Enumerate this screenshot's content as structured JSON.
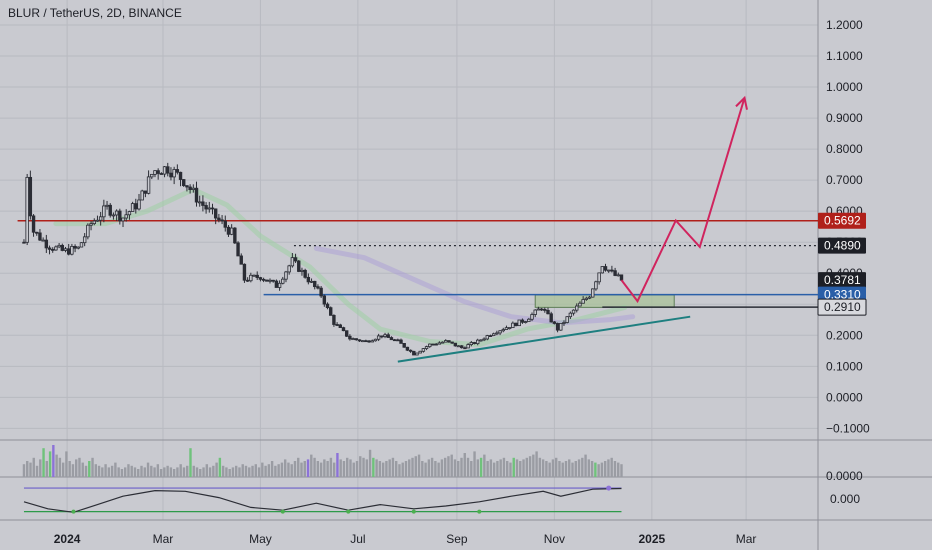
{
  "header": {
    "title": "BLUR / TetherUS, 2D, BINANCE"
  },
  "chart_data": {
    "type": "candlestick",
    "symbol": "BLUR / TetherUS",
    "interval": "2D",
    "exchange": "BINANCE",
    "y_ticks": [
      1.2,
      1.1,
      1.0,
      0.9,
      0.8,
      0.7,
      0.6,
      0.5,
      0.4,
      0.3,
      0.2,
      0.1,
      0.0,
      -0.1
    ],
    "y_tick_labels": [
      "1.2000",
      "1.1000",
      "1.0000",
      "0.9000",
      "0.8000",
      "0.7000",
      "0.6000",
      "0.5000",
      "0.4000",
      "0.3000",
      "0.2000",
      "0.1000",
      "0.0000",
      "−0.1000"
    ],
    "ylim": [
      -0.13,
      1.26
    ],
    "x_ticks": [
      "2024",
      "Mar",
      "May",
      "Jul",
      "Sep",
      "Nov",
      "2025",
      "Mar"
    ],
    "x_tick_dates": [
      "2024-01-01",
      "2024-03-01",
      "2024-05-01",
      "2024-07-01",
      "2024-09-01",
      "2024-11-01",
      "2025-01-01",
      "2025-03-01"
    ],
    "xlim": [
      "2023-11-20",
      "2025-04-15"
    ],
    "price_path": [
      [
        "2023-12-05",
        0.5
      ],
      [
        "2023-12-06",
        0.78
      ],
      [
        "2023-12-10",
        0.54
      ],
      [
        "2023-12-20",
        0.49
      ],
      [
        "2023-12-30",
        0.47
      ],
      [
        "2024-01-08",
        0.48
      ],
      [
        "2024-01-16",
        0.56
      ],
      [
        "2024-01-26",
        0.61
      ],
      [
        "2024-02-05",
        0.58
      ],
      [
        "2024-02-15",
        0.63
      ],
      [
        "2024-02-24",
        0.73
      ],
      [
        "2024-03-04",
        0.74
      ],
      [
        "2024-03-14",
        0.7
      ],
      [
        "2024-03-24",
        0.63
      ],
      [
        "2024-04-03",
        0.58
      ],
      [
        "2024-04-13",
        0.53
      ],
      [
        "2024-04-21",
        0.38
      ],
      [
        "2024-05-01",
        0.39
      ],
      [
        "2024-05-11",
        0.36
      ],
      [
        "2024-05-21",
        0.44
      ],
      [
        "2024-05-31",
        0.38
      ],
      [
        "2024-06-08",
        0.33
      ],
      [
        "2024-06-16",
        0.24
      ],
      [
        "2024-06-26",
        0.19
      ],
      [
        "2024-07-06",
        0.18
      ],
      [
        "2024-07-16",
        0.2
      ],
      [
        "2024-07-26",
        0.18
      ],
      [
        "2024-08-05",
        0.14
      ],
      [
        "2024-08-15",
        0.17
      ],
      [
        "2024-08-25",
        0.18
      ],
      [
        "2024-09-04",
        0.16
      ],
      [
        "2024-09-14",
        0.18
      ],
      [
        "2024-09-24",
        0.21
      ],
      [
        "2024-10-04",
        0.23
      ],
      [
        "2024-10-14",
        0.25
      ],
      [
        "2024-10-24",
        0.29
      ],
      [
        "2024-11-03",
        0.22
      ],
      [
        "2024-11-13",
        0.28
      ],
      [
        "2024-11-23",
        0.33
      ],
      [
        "2024-12-01",
        0.43
      ],
      [
        "2024-12-07",
        0.4
      ],
      [
        "2024-12-13",
        0.378
      ]
    ],
    "ma_green": [
      [
        "2023-12-25",
        0.56
      ],
      [
        "2024-01-25",
        0.56
      ],
      [
        "2024-02-20",
        0.6
      ],
      [
        "2024-03-20",
        0.67
      ],
      [
        "2024-04-10",
        0.62
      ],
      [
        "2024-05-01",
        0.52
      ],
      [
        "2024-06-01",
        0.42
      ],
      [
        "2024-06-25",
        0.3
      ],
      [
        "2024-07-15",
        0.22
      ],
      [
        "2024-08-15",
        0.18
      ],
      [
        "2024-09-15",
        0.17
      ],
      [
        "2024-10-15",
        0.22
      ],
      [
        "2024-11-15",
        0.25
      ],
      [
        "2024-12-15",
        0.29
      ]
    ],
    "ma_purple": [
      [
        "2024-06-05",
        0.48
      ],
      [
        "2024-07-05",
        0.45
      ],
      [
        "2024-08-05",
        0.38
      ],
      [
        "2024-09-05",
        0.31
      ],
      [
        "2024-10-05",
        0.26
      ],
      [
        "2024-11-05",
        0.24
      ],
      [
        "2024-12-05",
        0.25
      ],
      [
        "2024-12-20",
        0.26
      ]
    ],
    "levels": [
      {
        "value": 0.5692,
        "label": "0.5692",
        "color": "#b0201a",
        "style": "solid",
        "from": "2023-12-01"
      },
      {
        "value": 0.489,
        "label": "0.4890",
        "color": "#2a2d36",
        "style": "dotted",
        "from": "2024-05-22"
      },
      {
        "value": 0.378,
        "label": "0.3781",
        "color": "#1d1f26",
        "style": "none"
      },
      {
        "value": 0.331,
        "label": "0.3310",
        "color": "#2a5fa8",
        "style": "solid",
        "from": "2024-05-03"
      },
      {
        "value": 0.291,
        "label": "0.2910",
        "color": "#2a2d36",
        "style": "solid",
        "from": "2024-12-01"
      }
    ],
    "support_zone": {
      "from": "2024-10-20",
      "to": "2025-01-15",
      "low": 0.29,
      "high": 0.33,
      "color": "#a9c29a"
    },
    "trendlines": [
      {
        "from": [
          "2024-07-26",
          0.115
        ],
        "to": [
          "2025-01-25",
          0.26
        ],
        "color": "#1e7f80"
      }
    ],
    "projection": [
      [
        "2024-12-13",
        0.378
      ],
      [
        "2024-12-23",
        0.31
      ],
      [
        "2025-01-16",
        0.57
      ],
      [
        "2025-01-31",
        0.485
      ],
      [
        "2025-02-28",
        0.965
      ]
    ],
    "projection_color": "#d0245e",
    "volume": {
      "from": "2023-12-05",
      "to": "2024-12-13",
      "ylim": [
        0,
        1
      ],
      "bars": [
        0.4,
        0.5,
        0.45,
        0.6,
        0.35,
        0.55,
        0.9,
        0.5,
        0.8,
        1.0,
        0.7,
        0.6,
        0.45,
        0.8,
        0.5,
        0.4,
        0.55,
        0.6,
        0.45,
        0.35,
        0.5,
        0.6,
        0.4,
        0.35,
        0.3,
        0.4,
        0.3,
        0.35,
        0.45,
        0.3,
        0.25,
        0.3,
        0.4,
        0.35,
        0.3,
        0.25,
        0.35,
        0.3,
        0.45,
        0.35,
        0.3,
        0.4,
        0.25,
        0.3,
        0.35,
        0.3,
        0.25,
        0.3,
        0.4,
        0.3,
        0.35,
        0.9,
        0.35,
        0.3,
        0.25,
        0.3,
        0.4,
        0.3,
        0.35,
        0.45,
        0.6,
        0.35,
        0.3,
        0.25,
        0.3,
        0.35,
        0.3,
        0.4,
        0.35,
        0.3,
        0.35,
        0.4,
        0.3,
        0.45,
        0.35,
        0.4,
        0.5,
        0.35,
        0.4,
        0.45,
        0.55,
        0.45,
        0.4,
        0.5,
        0.6,
        0.45,
        0.5,
        0.55,
        0.7,
        0.6,
        0.5,
        0.45,
        0.55,
        0.5,
        0.6,
        0.45,
        0.75,
        0.55,
        0.5,
        0.6,
        0.55,
        0.45,
        0.5,
        0.65,
        0.6,
        0.55,
        0.85,
        0.6,
        0.55,
        0.5,
        0.45,
        0.5,
        0.55,
        0.6,
        0.5,
        0.4,
        0.45,
        0.5,
        0.55,
        0.6,
        0.65,
        0.7,
        0.5,
        0.45,
        0.55,
        0.6,
        0.5,
        0.45,
        0.55,
        0.6,
        0.65,
        0.7,
        0.55,
        0.5,
        0.6,
        0.75,
        0.6,
        0.5,
        0.8,
        0.55,
        0.6,
        0.7,
        0.5,
        0.55,
        0.45,
        0.5,
        0.55,
        0.6,
        0.5,
        0.45,
        0.6,
        0.55,
        0.5,
        0.55,
        0.6,
        0.65,
        0.7,
        0.8,
        0.6,
        0.55,
        0.5,
        0.45,
        0.55,
        0.6,
        0.5,
        0.45,
        0.5,
        0.55,
        0.45,
        0.5,
        0.55,
        0.6,
        0.7,
        0.55,
        0.5,
        0.45,
        0.4,
        0.45,
        0.5,
        0.55,
        0.6,
        0.5,
        0.45,
        0.4
      ],
      "y_tick_label": "0.0000"
    },
    "oscillator": {
      "y_tick_label": "0.000",
      "upper_band_color": "#6b5fc9",
      "lower_band_color": "#2e9a4a",
      "path": [
        [
          "2023-12-05",
          -0.2
        ],
        [
          "2023-12-20",
          -0.7
        ],
        [
          "2024-01-05",
          -0.95
        ],
        [
          "2024-01-20",
          -0.4
        ],
        [
          "2024-02-05",
          0.2
        ],
        [
          "2024-02-25",
          0.6
        ],
        [
          "2024-03-15",
          0.55
        ],
        [
          "2024-04-05",
          0.1
        ],
        [
          "2024-04-25",
          -0.6
        ],
        [
          "2024-05-15",
          -0.8
        ],
        [
          "2024-06-05",
          -0.3
        ],
        [
          "2024-06-25",
          -0.8
        ],
        [
          "2024-07-15",
          -0.4
        ],
        [
          "2024-08-05",
          -0.7
        ],
        [
          "2024-08-25",
          -0.5
        ],
        [
          "2024-09-15",
          -0.2
        ],
        [
          "2024-10-05",
          0.2
        ],
        [
          "2024-10-25",
          0.55
        ],
        [
          "2024-11-05",
          0.2
        ],
        [
          "2024-11-25",
          0.7
        ],
        [
          "2024-12-13",
          0.75
        ]
      ]
    }
  }
}
